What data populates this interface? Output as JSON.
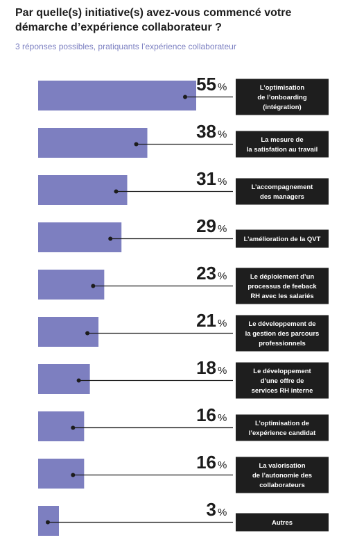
{
  "chart_data": {
    "type": "bar",
    "title": "Par quelle(s) initiative(s) avez-vous commencé votre démarche d’expérience collaborateur ?",
    "subtitle": "3 réponses possibles, pratiquants l’expérience collaborateur",
    "percent_symbol": "%",
    "colors": {
      "bar": "#7d7fc0",
      "label_box": "#1e1e1e",
      "text": "#1c1c1c",
      "subtitle": "#7b7fc1"
    },
    "xlim": [
      0,
      55
    ],
    "categories": [
      [
        "L’optimisation",
        "de l’onboarding",
        "(intégration)"
      ],
      [
        "La mesure de",
        "la satisfation au travail"
      ],
      [
        "L’accompagnement",
        "des managers"
      ],
      [
        "L’amélioration de la QVT"
      ],
      [
        "Le déploiement d’un",
        "processus de feeback",
        "RH avec les salariés"
      ],
      [
        "Le développement de",
        "la gestion des parcours",
        "professionnels"
      ],
      [
        "Le développement",
        "d’une offre de",
        "services RH interne"
      ],
      [
        "L’optimisation de",
        "l’expérience candidat"
      ],
      [
        "La valorisation",
        "de l’autonomie des",
        "collaborateurs"
      ],
      [
        "Autres"
      ]
    ],
    "values": [
      55,
      38,
      31,
      29,
      23,
      21,
      18,
      16,
      16,
      3
    ]
  }
}
